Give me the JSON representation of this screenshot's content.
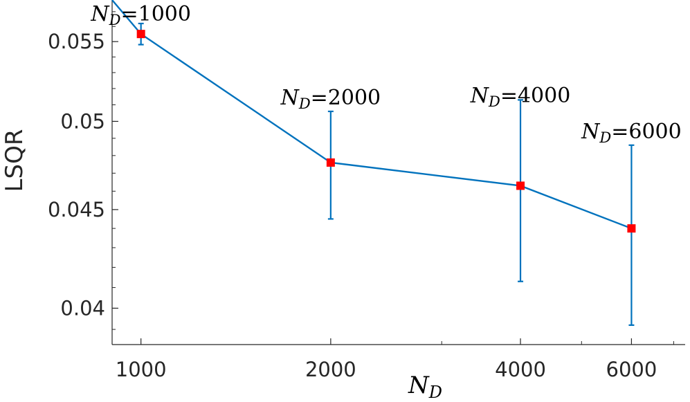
{
  "chart_data": {
    "type": "line",
    "xscale": "log",
    "yscale": "log",
    "xlim": [
      900,
      7300
    ],
    "ylim": [
      0.0383,
      0.0578
    ],
    "x_ticks": [
      1000,
      2000,
      4000,
      6000
    ],
    "x_tick_labels": [
      "1000",
      "2000",
      "4000",
      "6000"
    ],
    "y_ticks": [
      0.04,
      0.045,
      0.05,
      0.055
    ],
    "y_tick_labels": [
      "0.04",
      "0.045",
      "0.05",
      "0.055"
    ],
    "xlabel": {
      "base": "N",
      "subscript": "D"
    },
    "ylabel": "LSQR",
    "grid": false,
    "legend": "none",
    "line_color": "#0072BD",
    "marker_color": "#FF0000",
    "series": [
      {
        "x": [
          1000,
          2000,
          4000,
          6000
        ],
        "y": [
          0.0555,
          0.0476,
          0.0463,
          0.044
        ],
        "err_low": [
          0.0548,
          0.0445,
          0.0413,
          0.0392
        ],
        "err_high": [
          0.0562,
          0.0506,
          0.0513,
          0.0486
        ],
        "line_start": {
          "x": 900,
          "y": 0.0578
        }
      }
    ],
    "annotations": [
      {
        "base": "N",
        "subscript": "D",
        "text": "=1000",
        "x": 1000
      },
      {
        "base": "N",
        "subscript": "D",
        "text": "=2000",
        "x": 2000
      },
      {
        "base": "N",
        "subscript": "D",
        "text": "=4000",
        "x": 4000
      },
      {
        "base": "N",
        "subscript": "D",
        "text": "=6000",
        "x": 6000
      }
    ]
  }
}
